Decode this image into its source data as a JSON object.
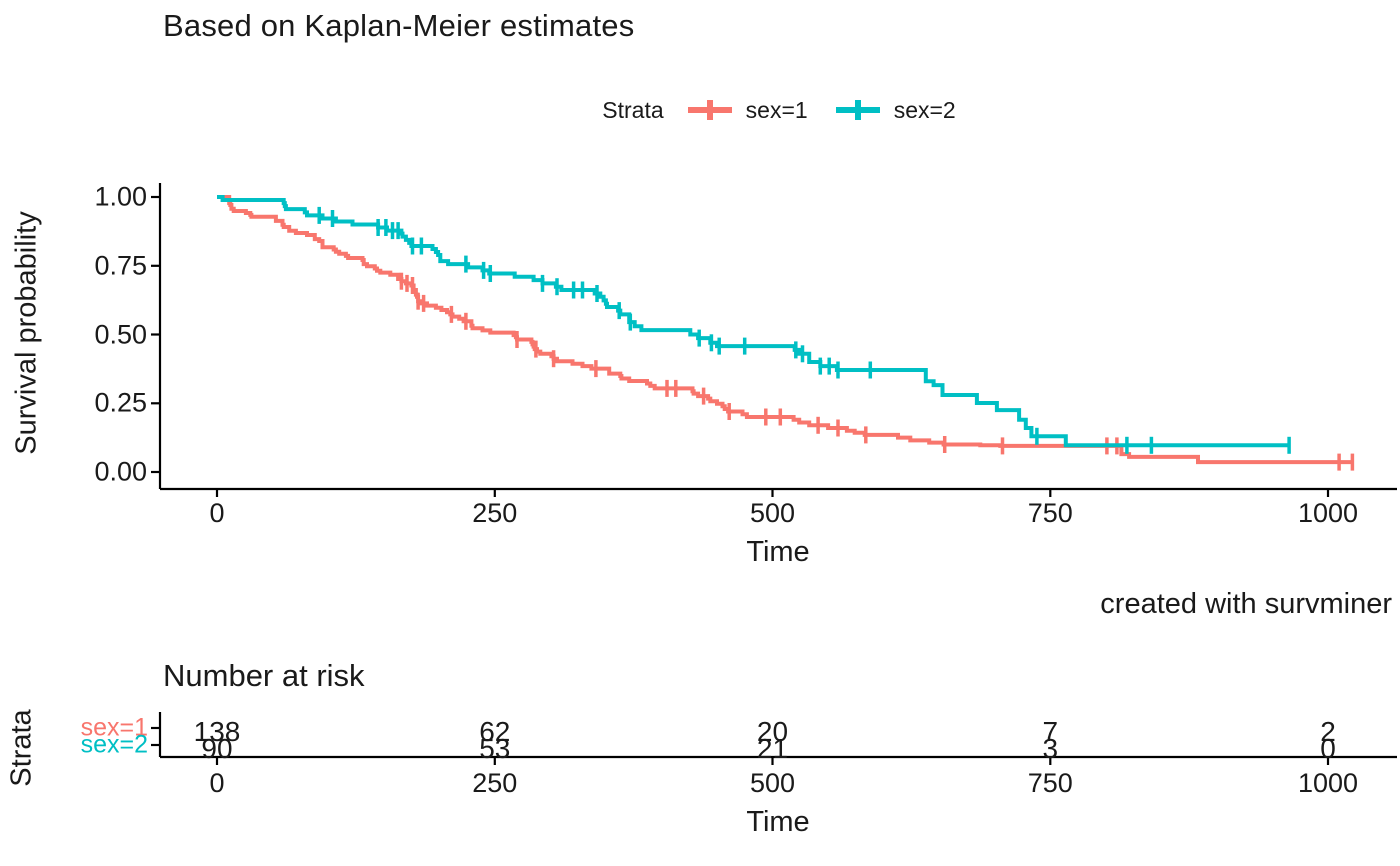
{
  "title": "Based on Kaplan-Meier estimates",
  "caption": "created with survminer",
  "legend": {
    "title": "Strata",
    "items": [
      {
        "label": "sex=1",
        "color": "#F8766D"
      },
      {
        "label": "sex=2",
        "color": "#00BFC4"
      }
    ]
  },
  "main_axes": {
    "x_label": "Time",
    "y_label": "Survival probability",
    "x_ticks": [
      {
        "label": "0",
        "v": 0
      },
      {
        "label": "250",
        "v": 250
      },
      {
        "label": "500",
        "v": 500
      },
      {
        "label": "750",
        "v": 750
      },
      {
        "label": "1000",
        "v": 1000
      }
    ],
    "y_ticks": [
      {
        "label": "1.00",
        "v": 1.0
      },
      {
        "label": "0.75",
        "v": 0.75
      },
      {
        "label": "0.50",
        "v": 0.5
      },
      {
        "label": "0.25",
        "v": 0.25
      },
      {
        "label": "0.00",
        "v": 0.0
      }
    ]
  },
  "risk_table": {
    "heading": "Number at risk",
    "y_axis_label": "Strata",
    "x_label": "Time",
    "x_ticks": [
      {
        "label": "0",
        "v": 0
      },
      {
        "label": "250",
        "v": 250
      },
      {
        "label": "500",
        "v": 500
      },
      {
        "label": "750",
        "v": 750
      },
      {
        "label": "1000",
        "v": 1000
      }
    ],
    "rows": [
      {
        "label": "sex=1",
        "color": "#F8766D",
        "counts": [
          {
            "t": 0,
            "n": "138"
          },
          {
            "t": 250,
            "n": "62"
          },
          {
            "t": 500,
            "n": "20"
          },
          {
            "t": 750,
            "n": "7"
          },
          {
            "t": 1000,
            "n": "2"
          }
        ]
      },
      {
        "label": "sex=2",
        "color": "#00BFC4",
        "counts": [
          {
            "t": 0,
            "n": "90"
          },
          {
            "t": 250,
            "n": "53"
          },
          {
            "t": 500,
            "n": "21"
          },
          {
            "t": 750,
            "n": "3"
          },
          {
            "t": 1000,
            "n": "0"
          }
        ]
      }
    ]
  },
  "chart_data": {
    "type": "line",
    "variant": "kaplan-meier-step-curves-with-censor-marks",
    "title": "Based on Kaplan-Meier estimates",
    "xlabel": "Time",
    "ylabel": "Survival probability",
    "xlim": [
      0,
      1060
    ],
    "ylim": [
      0,
      1
    ],
    "grid": false,
    "legend_position": "top",
    "series": [
      {
        "name": "sex=1",
        "color": "#F8766D",
        "steps": [
          [
            0,
            1.0
          ],
          [
            11,
            0.978
          ],
          [
            12,
            0.971
          ],
          [
            13,
            0.957
          ],
          [
            15,
            0.949
          ],
          [
            26,
            0.942
          ],
          [
            30,
            0.935
          ],
          [
            31,
            0.928
          ],
          [
            53,
            0.913
          ],
          [
            59,
            0.899
          ],
          [
            60,
            0.891
          ],
          [
            65,
            0.877
          ],
          [
            71,
            0.869
          ],
          [
            81,
            0.862
          ],
          [
            88,
            0.847
          ],
          [
            92,
            0.84
          ],
          [
            95,
            0.817
          ],
          [
            105,
            0.809
          ],
          [
            107,
            0.801
          ],
          [
            110,
            0.794
          ],
          [
            116,
            0.786
          ],
          [
            118,
            0.778
          ],
          [
            131,
            0.771
          ],
          [
            132,
            0.756
          ],
          [
            135,
            0.748
          ],
          [
            142,
            0.74
          ],
          [
            144,
            0.732
          ],
          [
            147,
            0.725
          ],
          [
            156,
            0.717
          ],
          [
            163,
            0.702
          ],
          [
            166,
            0.694
          ],
          [
            170,
            0.686
          ],
          [
            175,
            0.678
          ],
          [
            177,
            0.662
          ],
          [
            179,
            0.645
          ],
          [
            180,
            0.637
          ],
          [
            181,
            0.621
          ],
          [
            183,
            0.613
          ],
          [
            189,
            0.605
          ],
          [
            197,
            0.597
          ],
          [
            202,
            0.589
          ],
          [
            207,
            0.581
          ],
          [
            210,
            0.573
          ],
          [
            212,
            0.565
          ],
          [
            218,
            0.557
          ],
          [
            222,
            0.548
          ],
          [
            229,
            0.532
          ],
          [
            230,
            0.523
          ],
          [
            239,
            0.515
          ],
          [
            246,
            0.507
          ],
          [
            267,
            0.498
          ],
          [
            269,
            0.49
          ],
          [
            270,
            0.482
          ],
          [
            283,
            0.473
          ],
          [
            284,
            0.464
          ],
          [
            285,
            0.456
          ],
          [
            286,
            0.447
          ],
          [
            288,
            0.438
          ],
          [
            291,
            0.43
          ],
          [
            301,
            0.421
          ],
          [
            303,
            0.412
          ],
          [
            306,
            0.403
          ],
          [
            320,
            0.394
          ],
          [
            329,
            0.385
          ],
          [
            337,
            0.376
          ],
          [
            353,
            0.358
          ],
          [
            363,
            0.349
          ],
          [
            364,
            0.34
          ],
          [
            371,
            0.331
          ],
          [
            387,
            0.322
          ],
          [
            390,
            0.313
          ],
          [
            394,
            0.304
          ],
          [
            428,
            0.294
          ],
          [
            429,
            0.285
          ],
          [
            433,
            0.276
          ],
          [
            442,
            0.267
          ],
          [
            444,
            0.257
          ],
          [
            450,
            0.248
          ],
          [
            455,
            0.239
          ],
          [
            457,
            0.229
          ],
          [
            460,
            0.22
          ],
          [
            473,
            0.21
          ],
          [
            477,
            0.2
          ],
          [
            519,
            0.19
          ],
          [
            524,
            0.18
          ],
          [
            533,
            0.17
          ],
          [
            550,
            0.16
          ],
          [
            567,
            0.15
          ],
          [
            574,
            0.143
          ],
          [
            583,
            0.135
          ],
          [
            613,
            0.125
          ],
          [
            624,
            0.115
          ],
          [
            641,
            0.107
          ],
          [
            654,
            0.1
          ],
          [
            687,
            0.097
          ],
          [
            705,
            0.095
          ],
          [
            814,
            0.065
          ],
          [
            821,
            0.055
          ],
          [
            883,
            0.036
          ]
        ],
        "last_time": 1022,
        "censor_times": [
          166,
          171,
          176,
          181,
          186,
          211,
          224,
          270,
          287,
          303,
          341,
          405,
          413,
          438,
          461,
          494,
          507,
          541,
          559,
          584,
          655,
          707,
          801,
          810,
          1010,
          1022
        ]
      },
      {
        "name": "sex=2",
        "color": "#00BFC4",
        "steps": [
          [
            0,
            1.0
          ],
          [
            5,
            0.989
          ],
          [
            60,
            0.978
          ],
          [
            61,
            0.967
          ],
          [
            62,
            0.956
          ],
          [
            79,
            0.944
          ],
          [
            81,
            0.933
          ],
          [
            95,
            0.922
          ],
          [
            107,
            0.911
          ],
          [
            122,
            0.9
          ],
          [
            145,
            0.889
          ],
          [
            153,
            0.878
          ],
          [
            166,
            0.867
          ],
          [
            167,
            0.856
          ],
          [
            170,
            0.844
          ],
          [
            173,
            0.833
          ],
          [
            175,
            0.822
          ],
          [
            194,
            0.811
          ],
          [
            197,
            0.8
          ],
          [
            199,
            0.789
          ],
          [
            201,
            0.767
          ],
          [
            208,
            0.756
          ],
          [
            226,
            0.744
          ],
          [
            239,
            0.733
          ],
          [
            245,
            0.722
          ],
          [
            268,
            0.71
          ],
          [
            285,
            0.698
          ],
          [
            293,
            0.686
          ],
          [
            305,
            0.674
          ],
          [
            310,
            0.662
          ],
          [
            340,
            0.649
          ],
          [
            345,
            0.637
          ],
          [
            348,
            0.624
          ],
          [
            350,
            0.612
          ],
          [
            351,
            0.6
          ],
          [
            361,
            0.587
          ],
          [
            363,
            0.573
          ],
          [
            371,
            0.545
          ],
          [
            376,
            0.53
          ],
          [
            382,
            0.516
          ],
          [
            426,
            0.5
          ],
          [
            433,
            0.487
          ],
          [
            444,
            0.47
          ],
          [
            450,
            0.458
          ],
          [
            520,
            0.444
          ],
          [
            524,
            0.43
          ],
          [
            533,
            0.4
          ],
          [
            543,
            0.385
          ],
          [
            558,
            0.371
          ],
          [
            638,
            0.33
          ],
          [
            645,
            0.316
          ],
          [
            653,
            0.28
          ],
          [
            684,
            0.251
          ],
          [
            702,
            0.225
          ],
          [
            722,
            0.19
          ],
          [
            728,
            0.16
          ],
          [
            733,
            0.13
          ],
          [
            764,
            0.097
          ]
        ],
        "last_time": 965,
        "censor_times": [
          92,
          104,
          145,
          152,
          158,
          163,
          176,
          184,
          224,
          240,
          246,
          293,
          306,
          321,
          329,
          342,
          362,
          372,
          434,
          445,
          452,
          475,
          521,
          527,
          543,
          551,
          559,
          588,
          738,
          819,
          841,
          965
        ]
      }
    ],
    "risk_table": {
      "heading": "Number at risk",
      "times": [
        0,
        250,
        500,
        750,
        1000
      ],
      "rows": [
        {
          "name": "sex=1",
          "counts": [
            138,
            62,
            20,
            7,
            2
          ]
        },
        {
          "name": "sex=2",
          "counts": [
            90,
            53,
            21,
            3,
            0
          ]
        }
      ]
    }
  }
}
